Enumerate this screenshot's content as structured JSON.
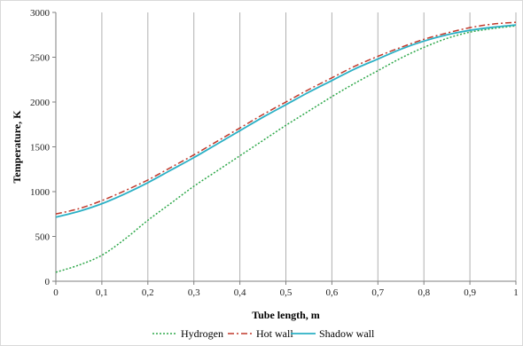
{
  "chart_data": {
    "type": "line",
    "xlabel": "Tube length, m",
    "ylabel": "Temperature, K",
    "xlim": [
      0,
      1
    ],
    "ylim": [
      0,
      3000
    ],
    "x_ticks": [
      0,
      0.1,
      0.2,
      0.3,
      0.4,
      0.5,
      0.6,
      0.7,
      0.8,
      0.9,
      1
    ],
    "x_tick_labels": [
      "0",
      "0,1",
      "0,2",
      "0,3",
      "0,4",
      "0,5",
      "0,6",
      "0,7",
      "0,8",
      "0,9",
      "1"
    ],
    "y_ticks": [
      0,
      500,
      1000,
      1500,
      2000,
      2500,
      3000
    ],
    "y_tick_labels": [
      "0",
      "500",
      "1000",
      "1500",
      "2000",
      "2500",
      "3000"
    ],
    "grid": "vertical",
    "legend_position": "bottom",
    "x": [
      0,
      0.05,
      0.1,
      0.15,
      0.2,
      0.25,
      0.3,
      0.35,
      0.4,
      0.45,
      0.5,
      0.55,
      0.6,
      0.65,
      0.7,
      0.75,
      0.8,
      0.85,
      0.9,
      0.95,
      1
    ],
    "series": [
      {
        "name": "Hydrogen",
        "color": "#2ea84a",
        "style": "dotted",
        "values": [
          100,
          180,
          290,
          470,
          680,
          870,
          1060,
          1230,
          1400,
          1570,
          1740,
          1900,
          2060,
          2210,
          2350,
          2490,
          2610,
          2710,
          2780,
          2820,
          2850
        ]
      },
      {
        "name": "Hot wall",
        "color": "#c0392b",
        "style": "dashdot",
        "values": [
          750,
          810,
          900,
          1010,
          1130,
          1270,
          1410,
          1560,
          1710,
          1860,
          2000,
          2140,
          2270,
          2400,
          2510,
          2610,
          2700,
          2770,
          2830,
          2870,
          2890
        ]
      },
      {
        "name": "Shadow wall",
        "color": "#2bb0c5",
        "style": "solid",
        "values": [
          715,
          780,
          865,
          975,
          1100,
          1240,
          1380,
          1530,
          1680,
          1830,
          1970,
          2110,
          2240,
          2370,
          2480,
          2590,
          2680,
          2750,
          2800,
          2835,
          2860
        ]
      }
    ]
  }
}
